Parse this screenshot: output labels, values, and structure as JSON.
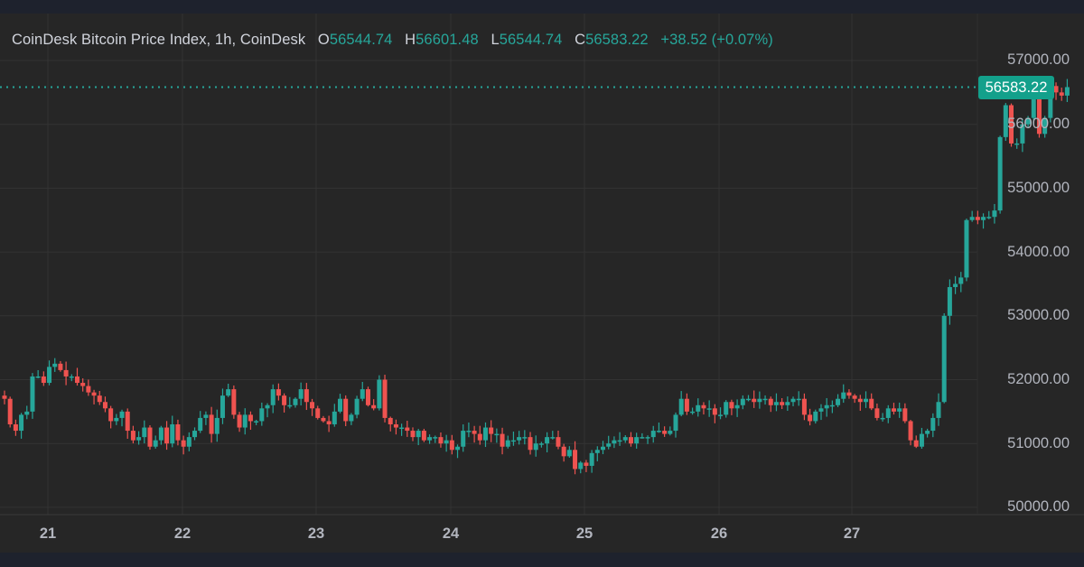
{
  "header": {
    "title": "CoinDesk Bitcoin Price Index, 1h, CoinDesk",
    "open_label": "O",
    "open": "56544.74",
    "high_label": "H",
    "high": "56601.48",
    "low_label": "L",
    "low": "56544.74",
    "close_label": "C",
    "close": "56583.22",
    "change": "+38.52 (+0.07%)"
  },
  "price_badge": "56583.22",
  "colors": {
    "up": "#26a69a",
    "down": "#ef5350",
    "background": "#262626",
    "grid": "#333333",
    "badge": "#13a08b"
  },
  "chart_data": {
    "type": "candlestick",
    "title": "CoinDesk Bitcoin Price Index, 1h, CoinDesk",
    "xlabel": "",
    "ylabel": "",
    "x_ticks": [
      "21",
      "22",
      "23",
      "24",
      "25",
      "26",
      "27"
    ],
    "y_ticks": [
      "57000.00",
      "56000.00",
      "55000.00",
      "54000.00",
      "53000.00",
      "52000.00",
      "51000.00",
      "50000.00"
    ],
    "ylim": [
      49970,
      57400
    ],
    "grid": true,
    "last_price": 56583.22,
    "interval": "1h",
    "ohlc_approx_daily": [
      {
        "day": "21",
        "open": 51700,
        "high": 52500,
        "low": 50800,
        "close": 51300
      },
      {
        "day": "22",
        "open": 51300,
        "high": 52000,
        "low": 50700,
        "close": 51600
      },
      {
        "day": "23",
        "open": 51600,
        "high": 52000,
        "low": 50800,
        "close": 51100
      },
      {
        "day": "24",
        "open": 51100,
        "high": 51200,
        "low": 50550,
        "close": 51100
      },
      {
        "day": "25",
        "open": 51100,
        "high": 51850,
        "low": 51050,
        "close": 51650
      },
      {
        "day": "26",
        "open": 51650,
        "high": 51950,
        "low": 50950,
        "close": 54500
      },
      {
        "day": "27",
        "open": 54500,
        "high": 56950,
        "low": 54400,
        "close": 56583.22
      }
    ],
    "closes_hourly": [
      51700,
      51300,
      51200,
      51450,
      51500,
      52050,
      52050,
      51950,
      52200,
      52250,
      52150,
      52050,
      52050,
      51950,
      51900,
      51800,
      51750,
      51650,
      51550,
      51350,
      51400,
      51500,
      51200,
      51050,
      51100,
      51250,
      50950,
      51050,
      51250,
      51000,
      51300,
      51050,
      50950,
      51100,
      51200,
      51400,
      51450,
      51150,
      51400,
      51750,
      51850,
      51450,
      51250,
      51450,
      51350,
      51350,
      51550,
      51600,
      51850,
      51750,
      51600,
      51600,
      51700,
      51850,
      51650,
      51550,
      51400,
      51350,
      51300,
      51500,
      51700,
      51350,
      51450,
      51700,
      51850,
      51600,
      51550,
      52000,
      51400,
      51300,
      51250,
      51250,
      51200,
      51100,
      51200,
      51050,
      51100,
      51100,
      51000,
      51050,
      50900,
      50950,
      51200,
      51200,
      51150,
      51050,
      51250,
      51150,
      51150,
      50950,
      51050,
      51050,
      51100,
      51100,
      50900,
      51000,
      51000,
      51100,
      51100,
      50950,
      50800,
      50900,
      50600,
      50700,
      50650,
      50850,
      50900,
      50950,
      51000,
      51050,
      51050,
      51100,
      51000,
      51100,
      51100,
      51100,
      51200,
      51200,
      51150,
      51200,
      51450,
      51700,
      51500,
      51500,
      51600,
      51550,
      51550,
      51450,
      51450,
      51650,
      51550,
      51600,
      51700,
      51700,
      51650,
      51700,
      51700,
      51600,
      51650,
      51600,
      51650,
      51700,
      51700,
      51450,
      51350,
      51500,
      51550,
      51600,
      51600,
      51700,
      51800,
      51750,
      51700,
      51650,
      51700,
      51550,
      51400,
      51400,
      51550,
      51500,
      51550,
      51350,
      51050,
      50950,
      51150,
      51200,
      51400,
      51650,
      53000,
      53450,
      53500,
      53600,
      54500,
      54550,
      54500,
      54550,
      54550,
      54650,
      55800,
      56300,
      55700,
      55700,
      56000,
      56100,
      56400,
      55850,
      56100,
      56600,
      56500,
      56450,
      56583
    ]
  }
}
